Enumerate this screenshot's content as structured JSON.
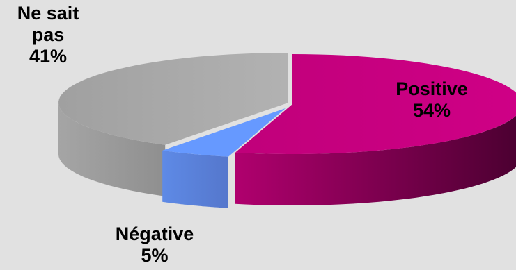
{
  "chart_data": {
    "type": "pie",
    "title": "",
    "slices": [
      {
        "label": "Positive",
        "value": 54,
        "value_label": "54%",
        "color": "#c8007f"
      },
      {
        "label": "Négative",
        "value": 5,
        "value_label": "5%",
        "color": "#6699ff"
      },
      {
        "label": "Ne sait pas",
        "value": 41,
        "value_label": "41%",
        "color": "#a8a8a8"
      }
    ],
    "legend": "none",
    "style": "3d-exploded-cylinder"
  },
  "labels": {
    "ne_sait_pas_line1": "Ne sait",
    "ne_sait_pas_line2": "pas",
    "ne_sait_pas_pct": "41%",
    "positive_name": "Positive",
    "positive_pct": "54%",
    "negative_name": "Négative",
    "negative_pct": "5%"
  }
}
